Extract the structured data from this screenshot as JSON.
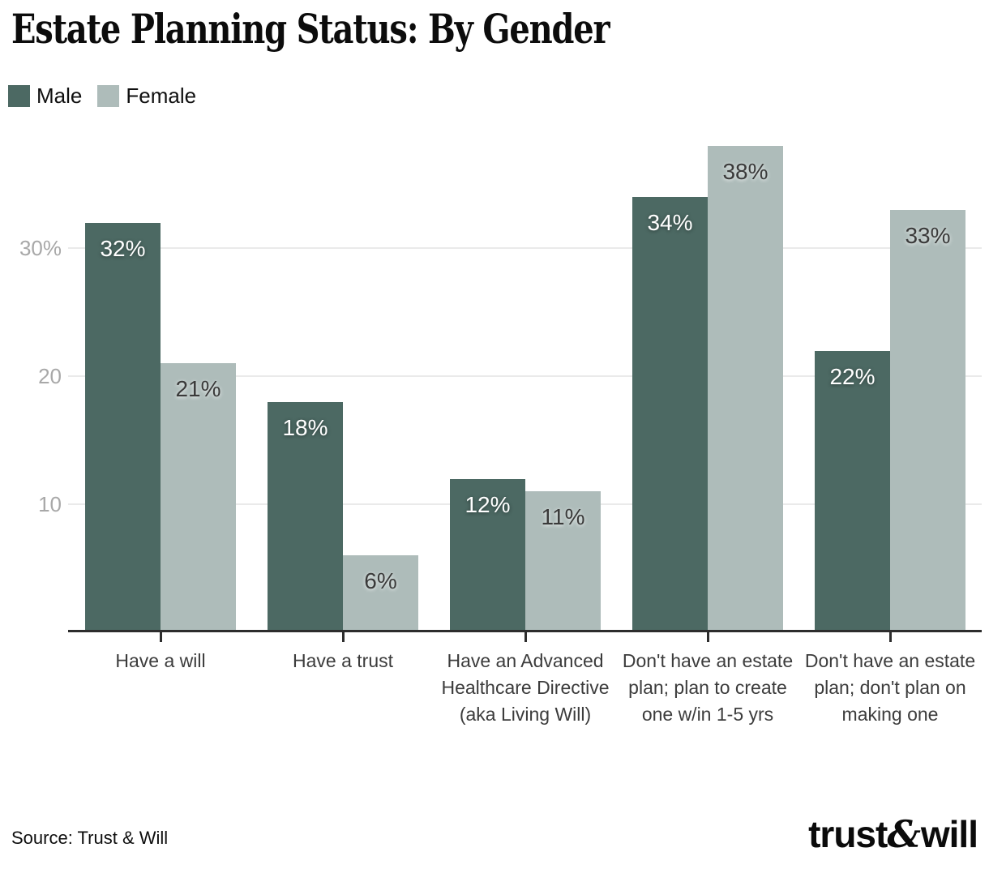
{
  "header": {
    "title": "Estate Planning Status: By Gender"
  },
  "chart_data": {
    "type": "bar",
    "title": "Estate Planning Status: By Gender",
    "categories": [
      "Have a will",
      "Have a trust",
      "Have an Advanced Healthcare Directive (aka Living Will)",
      "Don't have an estate plan; plan to create one w/in 1-5 yrs",
      "Don't have an estate plan; don't plan on making one"
    ],
    "series": [
      {
        "name": "Male",
        "color": "#4c6963",
        "label_color": "#ffffff",
        "values": [
          32,
          18,
          12,
          34,
          22
        ]
      },
      {
        "name": "Female",
        "color": "#aebcba",
        "label_color": "#3a3a3a",
        "values": [
          21,
          6,
          11,
          38,
          33
        ]
      }
    ],
    "value_suffix": "%",
    "y_ticks": [
      {
        "label": "10",
        "value": 10
      },
      {
        "label": "20",
        "value": 20
      },
      {
        "label": "30%",
        "value": 30
      }
    ],
    "ylim": [
      0,
      39.3
    ],
    "grid": "horizontal",
    "legend_position": "top-left",
    "xlabel": "",
    "ylabel": ""
  },
  "footer": {
    "source": "Source: Trust & Will",
    "logo": {
      "pre": "trust",
      "amp": "&",
      "post": "will"
    }
  }
}
